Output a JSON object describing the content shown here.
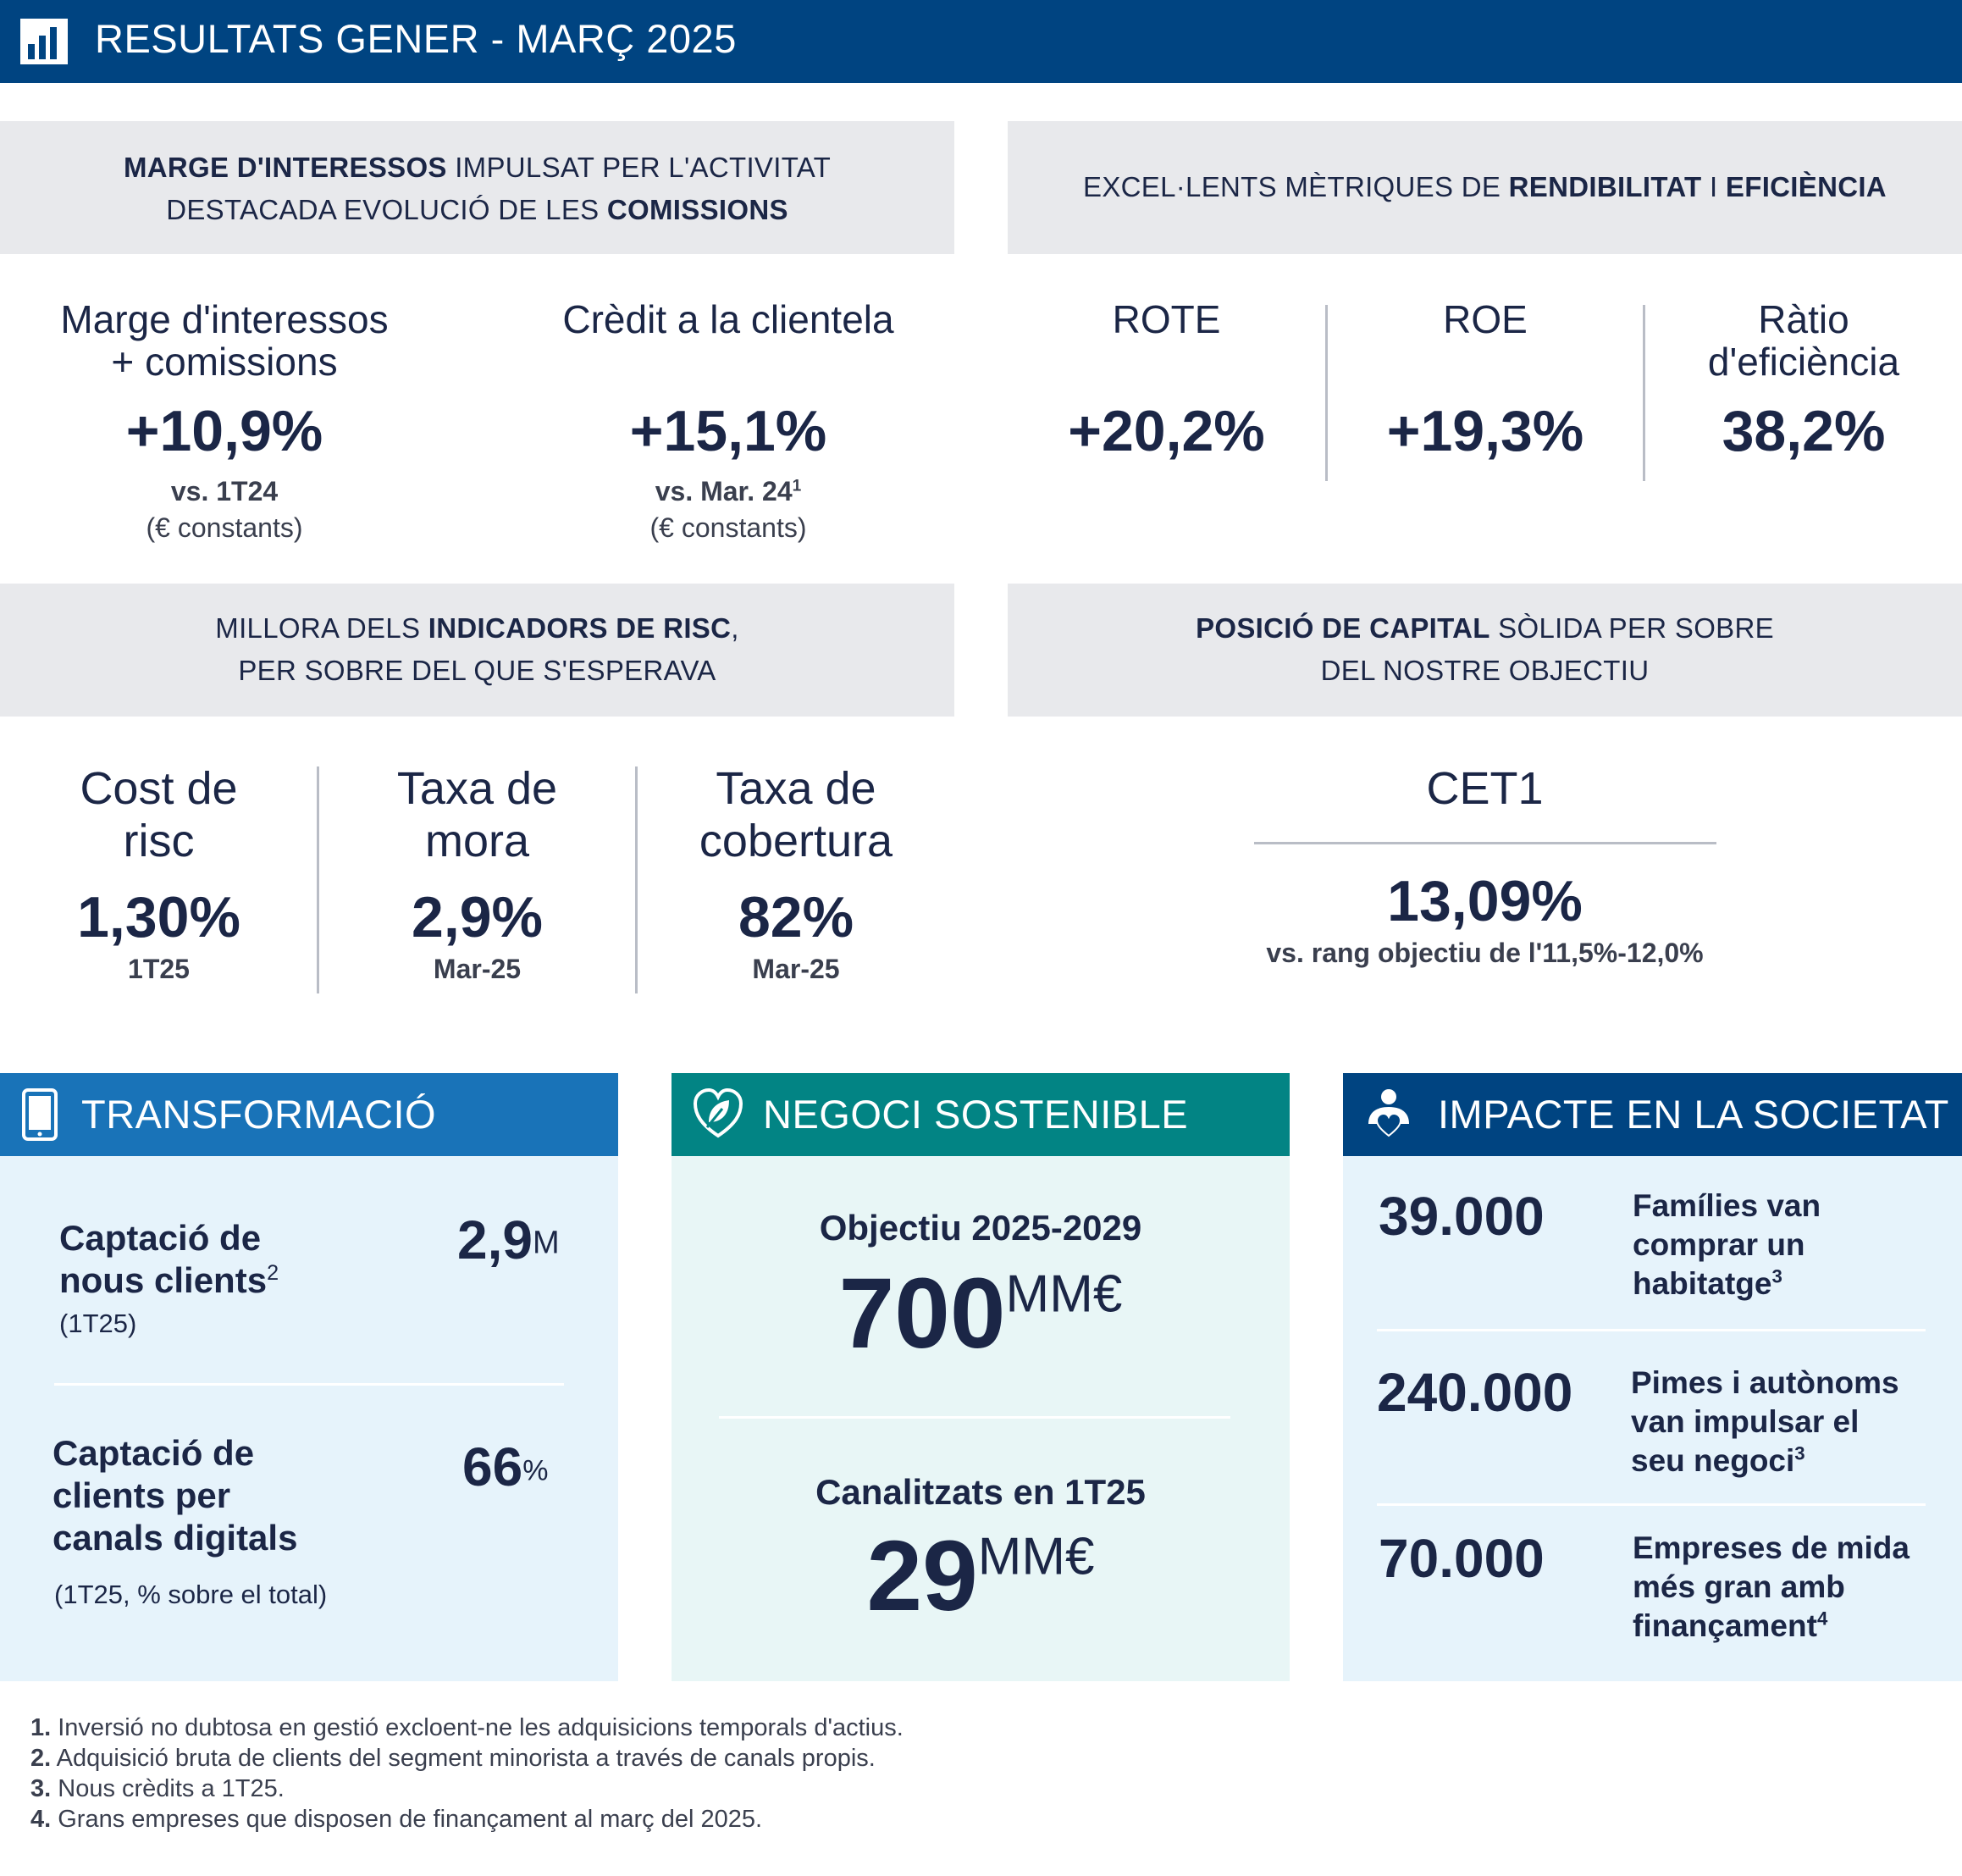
{
  "header": {
    "title": "RESULTATS GENER - MARÇ 2025",
    "icon": "bar-chart-icon"
  },
  "bands": {
    "b1": {
      "l1_bold": "MARGE D'INTERESSOS",
      "l1_rest": " IMPULSAT PER L'ACTIVITAT",
      "l2_pre": "DESTACADA EVOLUCIÓ DE LES ",
      "l2_bold": "COMISSIONS"
    },
    "b2": {
      "pre": "EXCEL·LENTS MÈTRIQUES DE ",
      "bold1": "RENDIBILITAT",
      "mid": " I ",
      "bold2": "EFICIÈNCIA"
    },
    "b3": {
      "l1_pre": "MILLORA DELS ",
      "l1_bold": "INDICADORS DE RISC",
      "l1_post": ",",
      "l2": "PER SOBRE DEL QUE S'ESPERAVA"
    },
    "b4": {
      "l1_bold": "POSICIÓ DE CAPITAL",
      "l1_rest": " SÒLIDA PER SOBRE",
      "l2": "DEL NOSTRE OBJECTIU"
    }
  },
  "kpis": {
    "margin": {
      "label1": "Marge d'interessos",
      "label2": "+ comissions",
      "value": "+10,9%",
      "sub": "vs. 1T24",
      "note": "(€ constants)"
    },
    "credit": {
      "label": "Crèdit a la clientela",
      "value": "+15,1%",
      "sub": "vs. Mar. 24",
      "sub_sup": "1",
      "note": "(€ constants)"
    },
    "rote": {
      "label": "ROTE",
      "value": "+20,2%"
    },
    "roe": {
      "label": "ROE",
      "value": "+19,3%"
    },
    "efficiency": {
      "label1": "Ràtio",
      "label2": "d'eficiència",
      "value": "38,2%"
    },
    "cost_risk": {
      "label1": "Cost de",
      "label2": "risc",
      "value": "1,30%",
      "sub": "1T25"
    },
    "npl": {
      "label1": "Taxa de",
      "label2": "mora",
      "value": "2,9%",
      "sub": "Mar-25"
    },
    "coverage": {
      "label1": "Taxa de",
      "label2": "cobertura",
      "value": "82%",
      "sub": "Mar-25"
    },
    "cet1": {
      "label": "CET1",
      "value": "13,09%",
      "sub": "vs. rang objectiu de l'11,5%-12,0%"
    }
  },
  "panels": {
    "transformation": {
      "title": "TRANSFORMACIÓ",
      "color": "#1973b8",
      "icon": "mobile-phone-icon",
      "item1": {
        "l1": "Captació de",
        "l2": "nous clients",
        "sup": "2",
        "note": "(1T25)",
        "value": "2,9",
        "unit": "M"
      },
      "item2": {
        "l1": "Captació de",
        "l2": "clients per",
        "l3": "canals digitals",
        "note": "(1T25, % sobre el total)",
        "value": "66",
        "unit": "%"
      }
    },
    "sustainable": {
      "title": "NEGOCI SOSTENIBLE",
      "color": "#028484",
      "icon": "leaf-heart-icon",
      "item1": {
        "label": "Objectiu 2025-2029",
        "value": "700",
        "unit": "MM€"
      },
      "item2": {
        "label": "Canalitzats en 1T25",
        "value": "29",
        "unit": "MM€"
      }
    },
    "society": {
      "title": "IMPACTE EN LA SOCIETAT",
      "color": "#004481",
      "icon": "people-heart-icon",
      "items": [
        {
          "value": "39.000",
          "l1": "Famílies van",
          "l2": "comprar un",
          "l3": "habitatge",
          "sup": "3"
        },
        {
          "value": "240.000",
          "l1": "Pimes i autònoms",
          "l2": "van impulsar el",
          "l3": "seu negoci",
          "sup": "3"
        },
        {
          "value": "70.000",
          "l1": "Empreses de mida",
          "l2": "més gran amb",
          "l3": "finançament",
          "sup": "4"
        }
      ]
    }
  },
  "footnotes": [
    {
      "num": "1.",
      "text": "Inversió no dubtosa en gestió excloent-ne les adquisicions temporals d'actius."
    },
    {
      "num": "2.",
      "text": "Adquisició bruta de clients del segment minorista a través de canals propis."
    },
    {
      "num": "3.",
      "text": "Nous crèdits a 1T25."
    },
    {
      "num": "4.",
      "text": "Grans empreses que disposen de finançament al març del 2025."
    }
  ]
}
